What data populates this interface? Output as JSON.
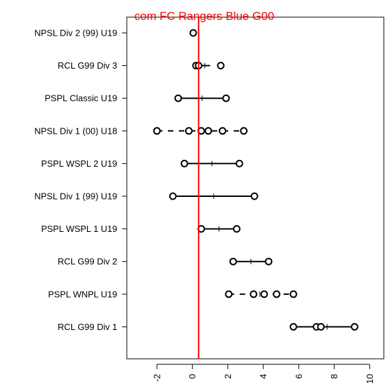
{
  "chart_data": {
    "type": "scatter",
    "title": "com FC Rangers Blue G00",
    "title_color": "#ff0000",
    "reference_line": {
      "x": 0.35,
      "color": "#ff0000"
    },
    "xlim": [
      -3.7,
      10.8
    ],
    "x_ticks": [
      -2,
      0,
      2,
      4,
      6,
      8,
      10
    ],
    "x_tick_labels": [
      "-2",
      "0",
      "2",
      "4",
      "6",
      "8",
      "10"
    ],
    "categories": [
      "NPSL Div 2 (99) U19",
      "RCL G99 Div 3",
      "PSPL Classic U19",
      "NPSL Div 1 (00) U18",
      "PSPL WSPL 2 U19",
      "NPSL Div 1 (99) U19",
      "PSPL WSPL 1 U19",
      "RCL G99 Div 2",
      "PSPL WNPL U19",
      "RCL G99 Div 1"
    ],
    "rows": [
      {
        "points": [
          0.05
        ],
        "segments": [],
        "mean": null,
        "dashed": false
      },
      {
        "points": [
          0.2,
          0.35,
          1.6
        ],
        "segments": [
          [
            0.2,
            1.0
          ]
        ],
        "mean": 0.7,
        "dashed": false
      },
      {
        "points": [
          -0.8,
          1.9
        ],
        "segments": [
          [
            -0.8,
            1.9
          ]
        ],
        "mean": 0.55,
        "dashed": false
      },
      {
        "points": [
          -2.0,
          -0.2,
          0.5,
          0.9,
          1.7,
          2.9
        ],
        "segments": [
          [
            -2.0,
            2.9
          ]
        ],
        "mean": 0.6,
        "dashed": true
      },
      {
        "points": [
          -0.45,
          2.65
        ],
        "segments": [
          [
            -0.45,
            2.65
          ]
        ],
        "mean": 1.1,
        "dashed": false
      },
      {
        "points": [
          -1.1,
          3.5
        ],
        "segments": [
          [
            -1.1,
            3.5
          ]
        ],
        "mean": 1.2,
        "dashed": false
      },
      {
        "points": [
          0.5,
          2.5
        ],
        "segments": [
          [
            0.5,
            2.5
          ]
        ],
        "mean": 1.5,
        "dashed": false
      },
      {
        "points": [
          2.3,
          4.3
        ],
        "segments": [
          [
            2.3,
            4.3
          ]
        ],
        "mean": 3.3,
        "dashed": false
      },
      {
        "points": [
          2.05,
          3.45,
          4.05,
          4.75,
          5.7
        ],
        "segments": [
          [
            2.05,
            5.7
          ]
        ],
        "mean": 3.8,
        "dashed": true
      },
      {
        "points": [
          5.7,
          7.0,
          7.25,
          9.15
        ],
        "segments": [
          [
            5.7,
            9.15
          ]
        ],
        "mean": 7.6,
        "dashed": false
      }
    ]
  }
}
